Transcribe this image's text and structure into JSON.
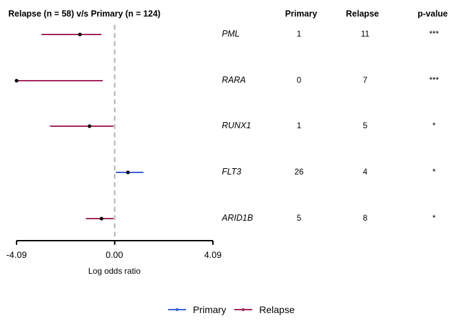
{
  "chart_data": {
    "type": "forest",
    "title": "Relapse (n = 58) v/s Primary (n = 124)",
    "xlabel": "Log odds ratio",
    "xlim": [
      -4.09,
      4.09
    ],
    "xticks": [
      -4.09,
      0.0,
      4.09
    ],
    "xtick_labels": [
      "-4.09",
      "0.00",
      "4.09"
    ],
    "reference_line": 0,
    "columns": [
      "Primary",
      "Relapse",
      "p-value"
    ],
    "rows": [
      {
        "gene": "PML",
        "estimate": -1.45,
        "ci_low": -3.05,
        "ci_high": -0.55,
        "favors": "Relapse",
        "primary": "1",
        "relapse": "11",
        "pvalue": "***"
      },
      {
        "gene": "RARA",
        "estimate": -4.09,
        "ci_low": -4.09,
        "ci_high": -0.5,
        "favors": "Relapse",
        "primary": "0",
        "relapse": "7",
        "pvalue": "***"
      },
      {
        "gene": "RUNX1",
        "estimate": -1.05,
        "ci_low": -2.7,
        "ci_high": -0.05,
        "favors": "Relapse",
        "primary": "1",
        "relapse": "5",
        "pvalue": "*"
      },
      {
        "gene": "FLT3",
        "estimate": 0.55,
        "ci_low": 0.05,
        "ci_high": 1.2,
        "favors": "Primary",
        "primary": "26",
        "relapse": "4",
        "pvalue": "*"
      },
      {
        "gene": "ARID1B",
        "estimate": -0.55,
        "ci_low": -1.2,
        "ci_high": -0.05,
        "favors": "Relapse",
        "primary": "5",
        "relapse": "8",
        "pvalue": "*"
      }
    ],
    "legend": {
      "position": "bottom",
      "entries": [
        {
          "name": "Primary",
          "color": "#3b5fd9"
        },
        {
          "name": "Relapse",
          "color": "#a3245c"
        }
      ]
    },
    "colors": {
      "Primary": "#3b5fd9",
      "Relapse": "#a3245c",
      "reference": "#b0b0b0"
    },
    "grid": false
  }
}
